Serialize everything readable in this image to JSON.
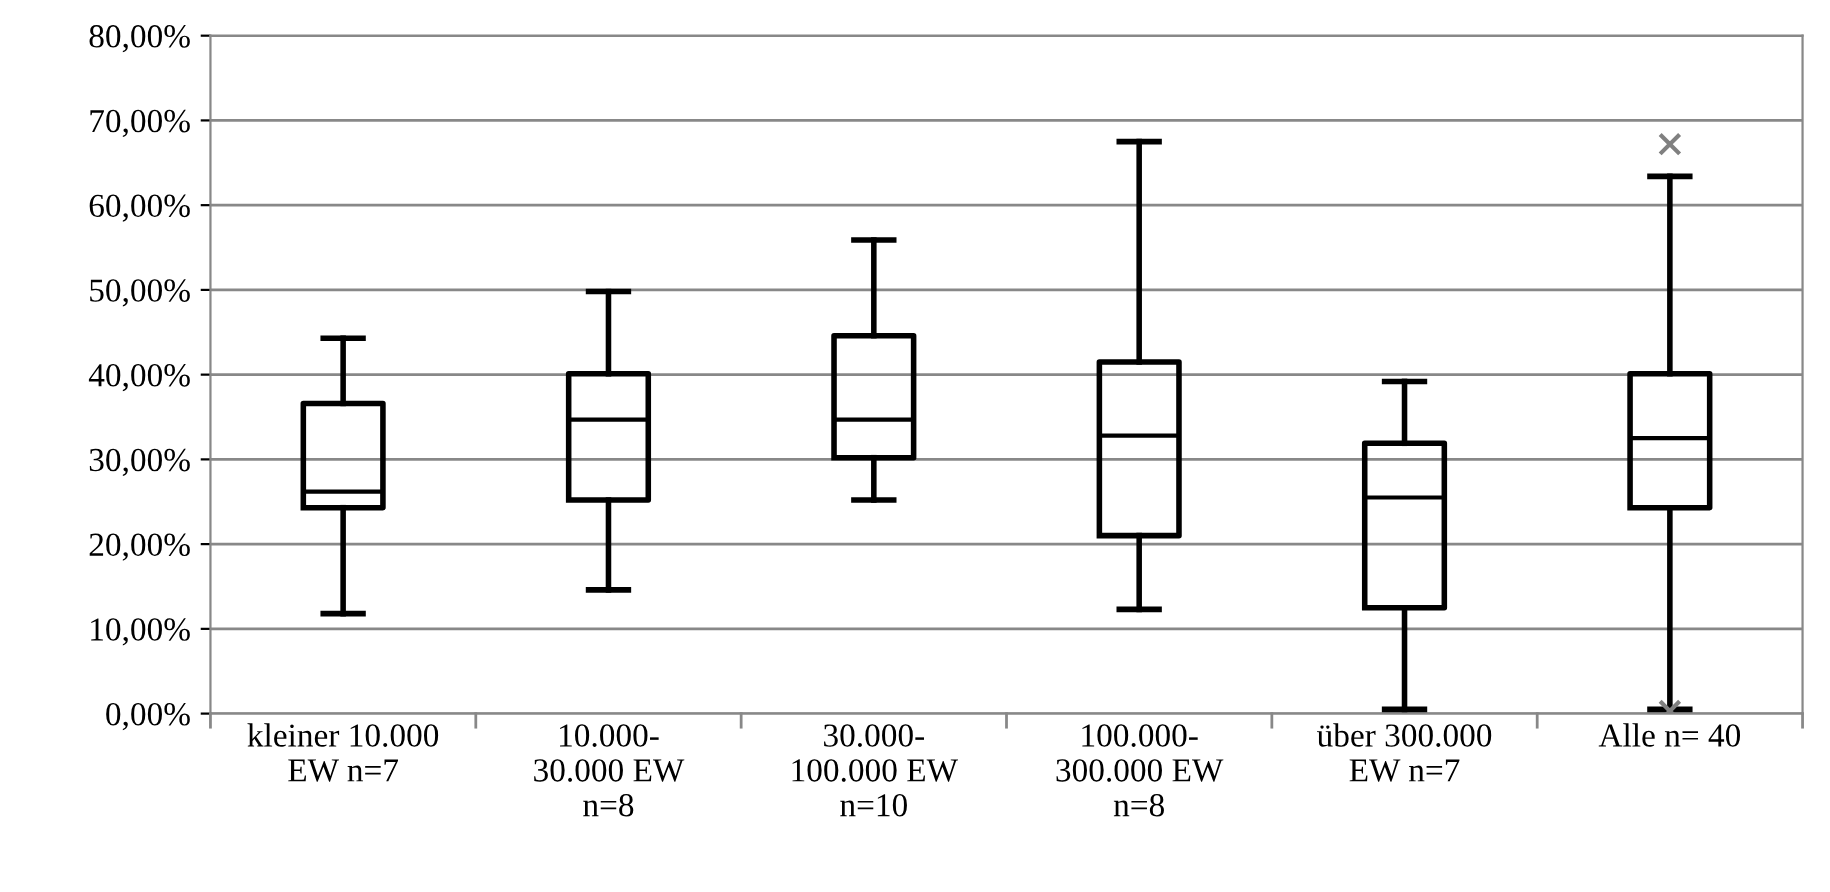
{
  "chart_data": {
    "type": "box",
    "categories": [
      "kleiner 10.000\nEW n=7",
      "10.000-\n30.000 EW\nn=8",
      "30.000-\n100.000 EW\nn=10",
      "100.000-\n300.000 EW\nn=8",
      "über 300.000\nEW n=7",
      "Alle n= 40"
    ],
    "boxes": [
      {
        "low": 11.8,
        "q1": 24.3,
        "median": 26.2,
        "q3": 36.6,
        "high": 44.3
      },
      {
        "low": 14.6,
        "q1": 25.2,
        "median": 34.7,
        "q3": 40.1,
        "high": 49.8
      },
      {
        "low": 25.2,
        "q1": 30.2,
        "median": 34.7,
        "q3": 44.6,
        "high": 55.9
      },
      {
        "low": 12.3,
        "q1": 21.0,
        "median": 32.8,
        "q3": 41.5,
        "high": 67.5
      },
      {
        "low": 0.5,
        "q1": 12.5,
        "median": 25.5,
        "q3": 31.9,
        "high": 39.2
      },
      {
        "low": 0.5,
        "q1": 24.3,
        "median": 32.5,
        "q3": 40.1,
        "high": 63.4,
        "outliers": [
          67.2,
          0.3
        ]
      }
    ],
    "ylim": [
      0,
      80
    ],
    "yticks": [
      {
        "value": 0,
        "label": "0,00%"
      },
      {
        "value": 10,
        "label": "10,00%"
      },
      {
        "value": 20,
        "label": "20,00%"
      },
      {
        "value": 30,
        "label": "30,00%"
      },
      {
        "value": 40,
        "label": "40,00%"
      },
      {
        "value": 50,
        "label": "50,00%"
      },
      {
        "value": 60,
        "label": "60,00%"
      },
      {
        "value": 70,
        "label": "70,00%"
      },
      {
        "value": 80,
        "label": "80,00%"
      }
    ],
    "grid": "y"
  }
}
